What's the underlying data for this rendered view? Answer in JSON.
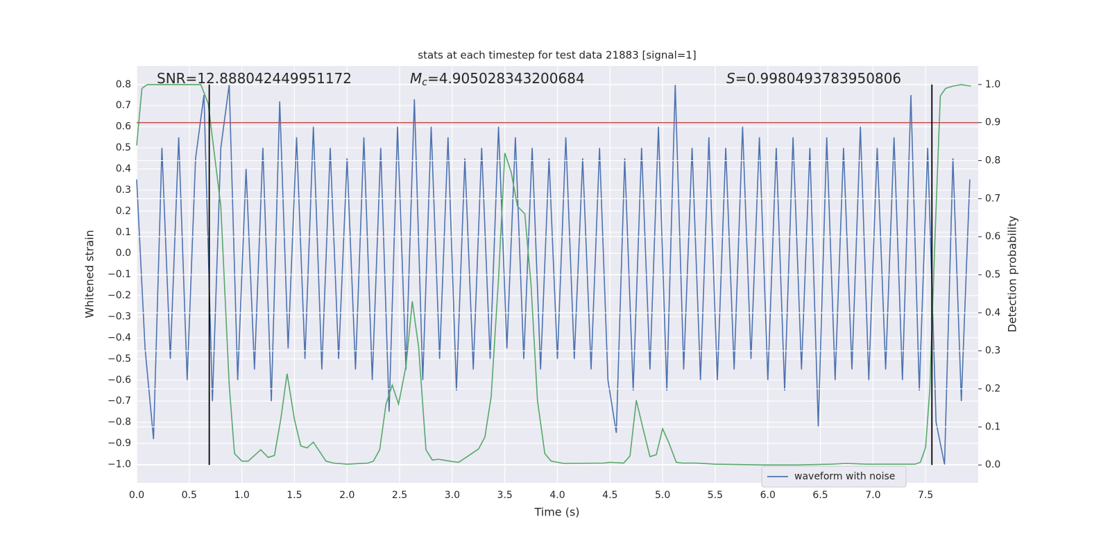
{
  "chart_data": {
    "type": "line",
    "title": "stats at each timestep for test data 21883 [signal=1]",
    "xlabel": "Time (s)",
    "ylabel": "Whitened strain",
    "y2label": "Detection probability",
    "annotations": [
      {
        "text": "SNR=12.888042449951172"
      },
      {
        "symbol": "M",
        "sub": "c",
        "text": "=4.905028343200684"
      },
      {
        "symbol": "S",
        "text": "=0.9980493783950806"
      }
    ],
    "xlim": [
      0,
      8.0
    ],
    "ylim": [
      -1.087,
      0.888
    ],
    "y2lim": [
      -0.047,
      1.049
    ],
    "xticks": [
      {
        "value": 0,
        "label": "0.0"
      },
      0.5,
      {
        "value": 1,
        "label": "1.0"
      },
      1.5,
      {
        "value": 2,
        "label": "2.0"
      },
      2.5,
      {
        "value": 3,
        "label": "3.0"
      },
      3.5,
      {
        "value": 4,
        "label": "4.0"
      },
      4.5,
      {
        "value": 5,
        "label": "5.0"
      },
      5.5,
      {
        "value": 6,
        "label": "6.0"
      },
      6.5,
      {
        "value": 7,
        "label": "7.0"
      },
      7.5
    ],
    "yticks": [
      0.8,
      0.7,
      0.6,
      0.5,
      0.4,
      0.3,
      0.2,
      0.1,
      {
        "value": 0,
        "label": "0.0"
      },
      {
        "value": -0.1,
        "label": "−0.1"
      },
      {
        "value": -0.2,
        "label": "−0.2"
      },
      {
        "value": -0.3,
        "label": "−0.3"
      },
      {
        "value": -0.4,
        "label": "−0.4"
      },
      {
        "value": -0.5,
        "label": "−0.5"
      },
      {
        "value": -0.6,
        "label": "−0.6"
      },
      {
        "value": -0.7,
        "label": "−0.7"
      },
      {
        "value": -0.8,
        "label": "−0.8"
      },
      {
        "value": -0.9,
        "label": "−0.9"
      },
      {
        "value": -1.0,
        "label": "−1.0"
      }
    ],
    "y2ticks": [
      {
        "value": 1,
        "label": "1.0"
      },
      0.9,
      0.8,
      0.7,
      0.6,
      0.5,
      0.4,
      0.3,
      0.2,
      0.1,
      {
        "value": 0,
        "label": "0.0"
      }
    ],
    "grid": true,
    "legend": "lower right",
    "hline": {
      "value": 0.9,
      "axis": "y2",
      "color": "#c44e52"
    },
    "vlines": {
      "x": [
        0.69,
        7.56
      ],
      "span": [
        0,
        1
      ],
      "axis": "y2",
      "color": "#000000"
    },
    "series": [
      {
        "name": "waveform with noise",
        "color": "#4c72b0",
        "x": [
          0,
          0.08,
          0.16,
          0.24,
          0.32,
          0.4,
          0.48,
          0.56,
          0.64,
          0.72,
          0.8,
          0.88,
          0.96,
          1.04,
          1.12,
          1.2,
          1.28,
          1.36,
          1.44,
          1.52,
          1.6,
          1.68,
          1.76,
          1.84,
          1.92,
          2,
          2.08,
          2.16,
          2.24,
          2.32,
          2.4,
          2.48,
          2.56,
          2.64,
          2.72,
          2.8,
          2.88,
          2.96,
          3.04,
          3.12,
          3.2,
          3.28,
          3.36,
          3.44,
          3.52,
          3.6,
          3.68,
          3.76,
          3.84,
          3.92,
          4,
          4.08,
          4.16,
          4.24,
          4.32,
          4.4,
          4.48,
          4.56,
          4.64,
          4.72,
          4.8,
          4.88,
          4.96,
          5.04,
          5.12,
          5.2,
          5.28,
          5.36,
          5.44,
          5.52,
          5.6,
          5.68,
          5.76,
          5.84,
          5.92,
          6,
          6.08,
          6.16,
          6.24,
          6.32,
          6.4,
          6.48,
          6.56,
          6.64,
          6.72,
          6.8,
          6.88,
          6.96,
          7.04,
          7.12,
          7.2,
          7.28,
          7.36,
          7.44,
          7.52,
          7.6,
          7.68,
          7.76,
          7.84,
          7.92
        ],
        "values": [
          0.35,
          -0.45,
          -0.88,
          0.5,
          -0.5,
          0.55,
          -0.6,
          0.45,
          0.75,
          -0.7,
          0.5,
          0.8,
          -0.6,
          0.4,
          -0.55,
          0.5,
          -0.7,
          0.72,
          -0.45,
          0.55,
          -0.5,
          0.6,
          -0.55,
          0.5,
          -0.5,
          0.45,
          -0.55,
          0.55,
          -0.6,
          0.5,
          -0.75,
          0.6,
          -0.55,
          0.73,
          -0.6,
          0.6,
          -0.5,
          0.55,
          -0.65,
          0.45,
          -0.55,
          0.5,
          -0.5,
          0.6,
          -0.45,
          0.55,
          -0.5,
          0.5,
          -0.55,
          0.45,
          -0.5,
          0.55,
          -0.5,
          0.45,
          -0.55,
          0.5,
          -0.6,
          -0.85,
          0.45,
          -0.65,
          0.5,
          -0.55,
          0.6,
          -0.65,
          0.8,
          -0.55,
          0.5,
          -0.6,
          0.55,
          -0.6,
          0.5,
          -0.55,
          0.6,
          -0.5,
          0.55,
          -0.6,
          0.5,
          -0.65,
          0.55,
          -0.55,
          0.5,
          -0.82,
          0.55,
          -0.6,
          0.5,
          -0.55,
          0.6,
          -0.6,
          0.5,
          -0.55,
          0.55,
          -0.6,
          0.75,
          -0.65,
          0.5,
          -0.8,
          -1.0,
          0.45,
          -0.7,
          0.35
        ]
      },
      {
        "color": "#55a868",
        "axis": "y2",
        "x": [
          0,
          0.05,
          0.1,
          0.61,
          0.68,
          0.8,
          0.88,
          0.93,
          1.0,
          1.06,
          1.18,
          1.25,
          1.31,
          1.37,
          1.43,
          1.5,
          1.56,
          1.62,
          1.68,
          1.8,
          1.87,
          2.0,
          2.2,
          2.25,
          2.31,
          2.37,
          2.43,
          2.49,
          2.56,
          2.62,
          2.68,
          2.75,
          2.81,
          2.87,
          3.0,
          3.06,
          3.12,
          3.25,
          3.31,
          3.37,
          3.44,
          3.5,
          3.56,
          3.62,
          3.69,
          3.75,
          3.81,
          3.88,
          3.94,
          4.06,
          4.44,
          4.5,
          4.63,
          4.69,
          4.75,
          4.81,
          4.88,
          4.94,
          5.0,
          5.06,
          5.13,
          5.19,
          5.32,
          5.5,
          5.95,
          6.28,
          6.61,
          6.74,
          6.94,
          7.4,
          7.45,
          7.5,
          7.54,
          7.59,
          7.64,
          7.69,
          7.76,
          7.84,
          7.93
        ],
        "values": [
          0.84,
          0.99,
          1.0,
          1.0,
          0.95,
          0.68,
          0.21,
          0.03,
          0.01,
          0.01,
          0.04,
          0.02,
          0.025,
          0.12,
          0.24,
          0.12,
          0.05,
          0.045,
          0.06,
          0.01,
          0.005,
          0.002,
          0.005,
          0.01,
          0.04,
          0.16,
          0.21,
          0.16,
          0.26,
          0.43,
          0.31,
          0.04,
          0.013,
          0.015,
          0.009,
          0.007,
          0.018,
          0.042,
          0.073,
          0.18,
          0.49,
          0.82,
          0.77,
          0.68,
          0.66,
          0.47,
          0.17,
          0.03,
          0.01,
          0.004,
          0.005,
          0.007,
          0.005,
          0.024,
          0.17,
          0.1,
          0.022,
          0.027,
          0.095,
          0.058,
          0.007,
          0.005,
          0.005,
          0.002,
          0,
          0,
          0.002,
          0.004,
          0.002,
          0.002,
          0.007,
          0.046,
          0.2,
          0.6,
          0.97,
          0.99,
          0.996,
          1.0,
          0.996
        ]
      }
    ]
  }
}
